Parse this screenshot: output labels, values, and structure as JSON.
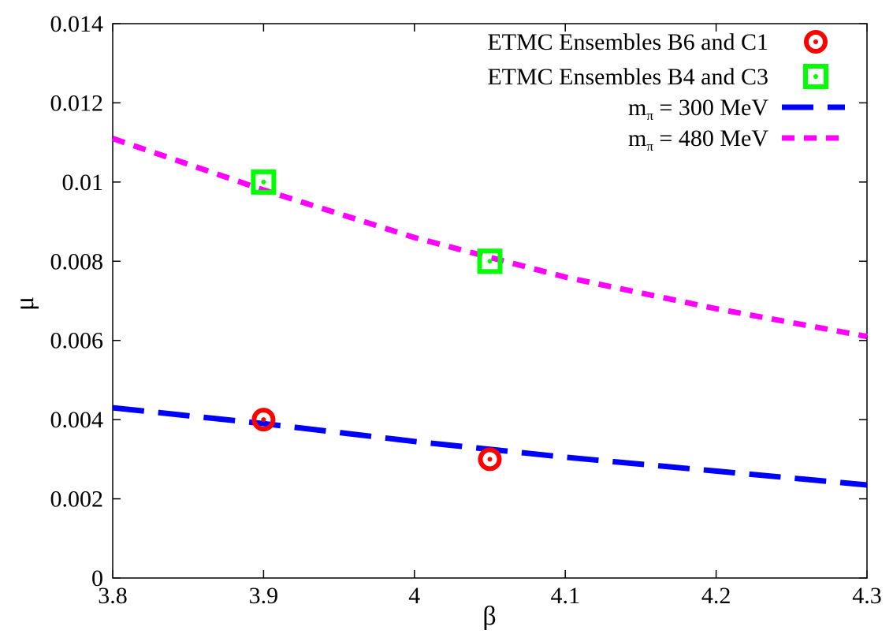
{
  "chart_data": {
    "type": "scatter",
    "title": "",
    "xlabel": "β",
    "ylabel": "μ",
    "xlim": [
      3.8,
      4.3
    ],
    "ylim": [
      0,
      0.014
    ],
    "xticks": [
      3.8,
      3.9,
      4.0,
      4.1,
      4.2,
      4.3
    ],
    "xtick_labels": [
      "3.8",
      "3.9",
      "4",
      "4.1",
      "4.2",
      "4.3"
    ],
    "yticks": [
      0,
      0.002,
      0.004,
      0.006,
      0.008,
      0.01,
      0.012,
      0.014
    ],
    "ytick_labels": [
      "0",
      "0.002",
      "0.004",
      "0.006",
      "0.008",
      "0.01",
      "0.012",
      "0.014"
    ],
    "grid": false,
    "legend_position": "top-right",
    "series": [
      {
        "name": "ETMC Ensembles B6 and C1",
        "kind": "points",
        "marker": "circle",
        "color": "#ff0000",
        "points": [
          [
            3.9,
            0.004
          ],
          [
            4.05,
            0.003
          ]
        ]
      },
      {
        "name": "ETMC Ensembles B4 and C3",
        "kind": "points",
        "marker": "square",
        "color": "#00ff00",
        "points": [
          [
            3.9,
            0.01
          ],
          [
            4.05,
            0.008
          ]
        ]
      },
      {
        "name_main": "m",
        "name_sub": "π",
        "name_rest": " = 300 MeV",
        "kind": "line",
        "style": "long-dash",
        "color": "#0000ff",
        "x": [
          3.8,
          3.9,
          4.0,
          4.1,
          4.2,
          4.3
        ],
        "y": [
          0.0043,
          0.0039,
          0.00345,
          0.00305,
          0.0027,
          0.00235
        ]
      },
      {
        "name_main": "m",
        "name_sub": "π",
        "name_rest": " = 480 MeV",
        "kind": "line",
        "style": "short-dash",
        "color": "#ff00ff",
        "x": [
          3.8,
          3.9,
          4.0,
          4.1,
          4.2,
          4.3
        ],
        "y": [
          0.0111,
          0.0098,
          0.0086,
          0.0076,
          0.0068,
          0.0061
        ]
      }
    ]
  }
}
